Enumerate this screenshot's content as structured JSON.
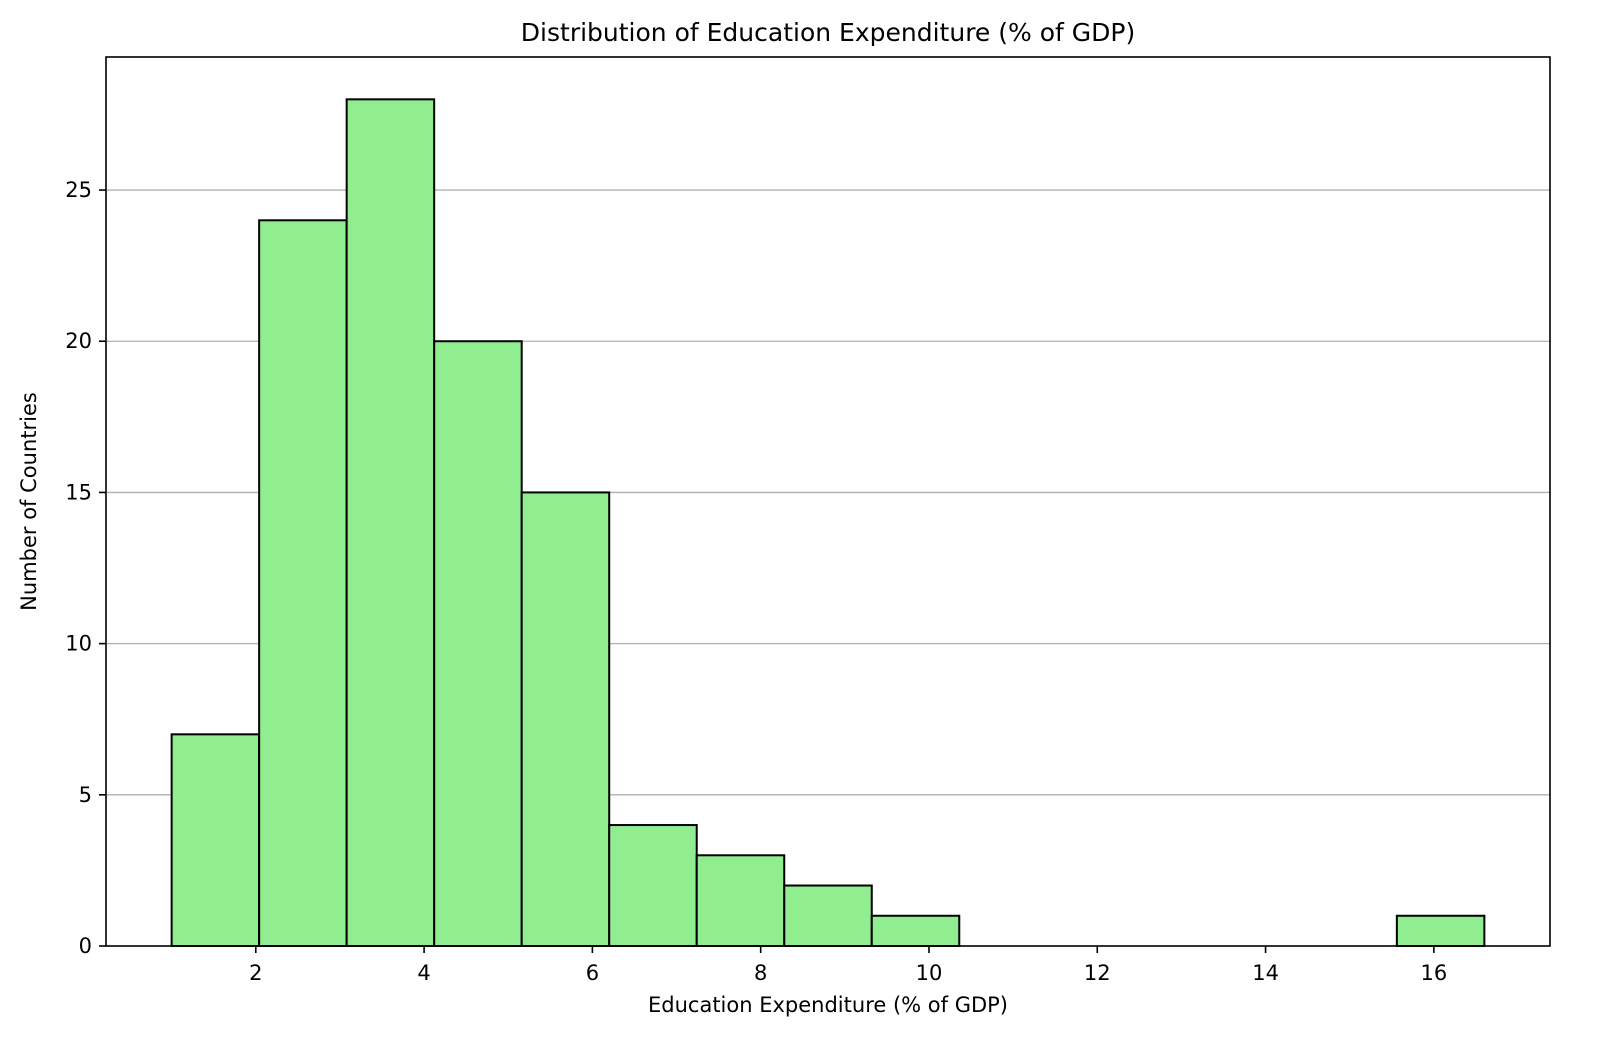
{
  "chart_data": {
    "type": "bar",
    "title": "Distribution of Education Expenditure (% of GDP)",
    "xlabel": "Education Expenditure (% of GDP)",
    "ylabel": "Number of Countries",
    "bins": [
      {
        "start": 1.0,
        "end": 2.04,
        "count": 7
      },
      {
        "start": 2.04,
        "end": 3.08,
        "count": 24
      },
      {
        "start": 3.08,
        "end": 4.12,
        "count": 28
      },
      {
        "start": 4.12,
        "end": 5.16,
        "count": 20
      },
      {
        "start": 5.16,
        "end": 6.2,
        "count": 15
      },
      {
        "start": 6.2,
        "end": 7.24,
        "count": 4
      },
      {
        "start": 7.24,
        "end": 8.28,
        "count": 3
      },
      {
        "start": 8.28,
        "end": 9.32,
        "count": 2
      },
      {
        "start": 9.32,
        "end": 10.36,
        "count": 1
      },
      {
        "start": 10.36,
        "end": 11.4,
        "count": 0
      },
      {
        "start": 11.4,
        "end": 12.44,
        "count": 0
      },
      {
        "start": 12.44,
        "end": 13.48,
        "count": 0
      },
      {
        "start": 13.48,
        "end": 14.52,
        "count": 0
      },
      {
        "start": 14.52,
        "end": 15.56,
        "count": 0
      },
      {
        "start": 15.56,
        "end": 16.6,
        "count": 1
      }
    ],
    "xlim": [
      0.22,
      17.38
    ],
    "ylim": [
      0,
      29.4
    ],
    "xticks": [
      2,
      4,
      6,
      8,
      10,
      12,
      14,
      16
    ],
    "yticks": [
      0,
      5,
      10,
      15,
      20,
      25
    ],
    "grid": "horizontal",
    "legend": "none",
    "colors": {
      "bar_fill": "#90EE90",
      "bar_edge": "#000000",
      "grid": "#b0b0b0"
    }
  }
}
